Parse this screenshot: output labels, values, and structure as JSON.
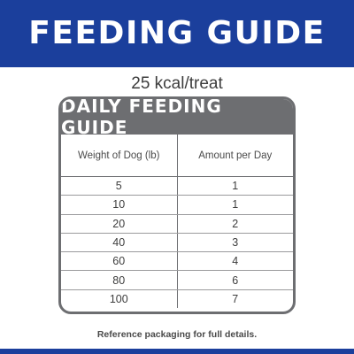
{
  "banner": {
    "title": "FEEDING GUIDE",
    "color": "#1b3f9c"
  },
  "calories": "25 kcal/treat",
  "table": {
    "title": "DAILY FEEDING GUIDE",
    "header_color": "#6d6e71",
    "columns": [
      "Weight of Dog (lb)",
      "Amount per Day"
    ],
    "rows": [
      [
        "5",
        "1"
      ],
      [
        "10",
        "1"
      ],
      [
        "20",
        "2"
      ],
      [
        "40",
        "3"
      ],
      [
        "60",
        "4"
      ],
      [
        "80",
        "6"
      ],
      [
        "100",
        "7"
      ]
    ]
  },
  "footer_note": "Reference packaging for full details."
}
